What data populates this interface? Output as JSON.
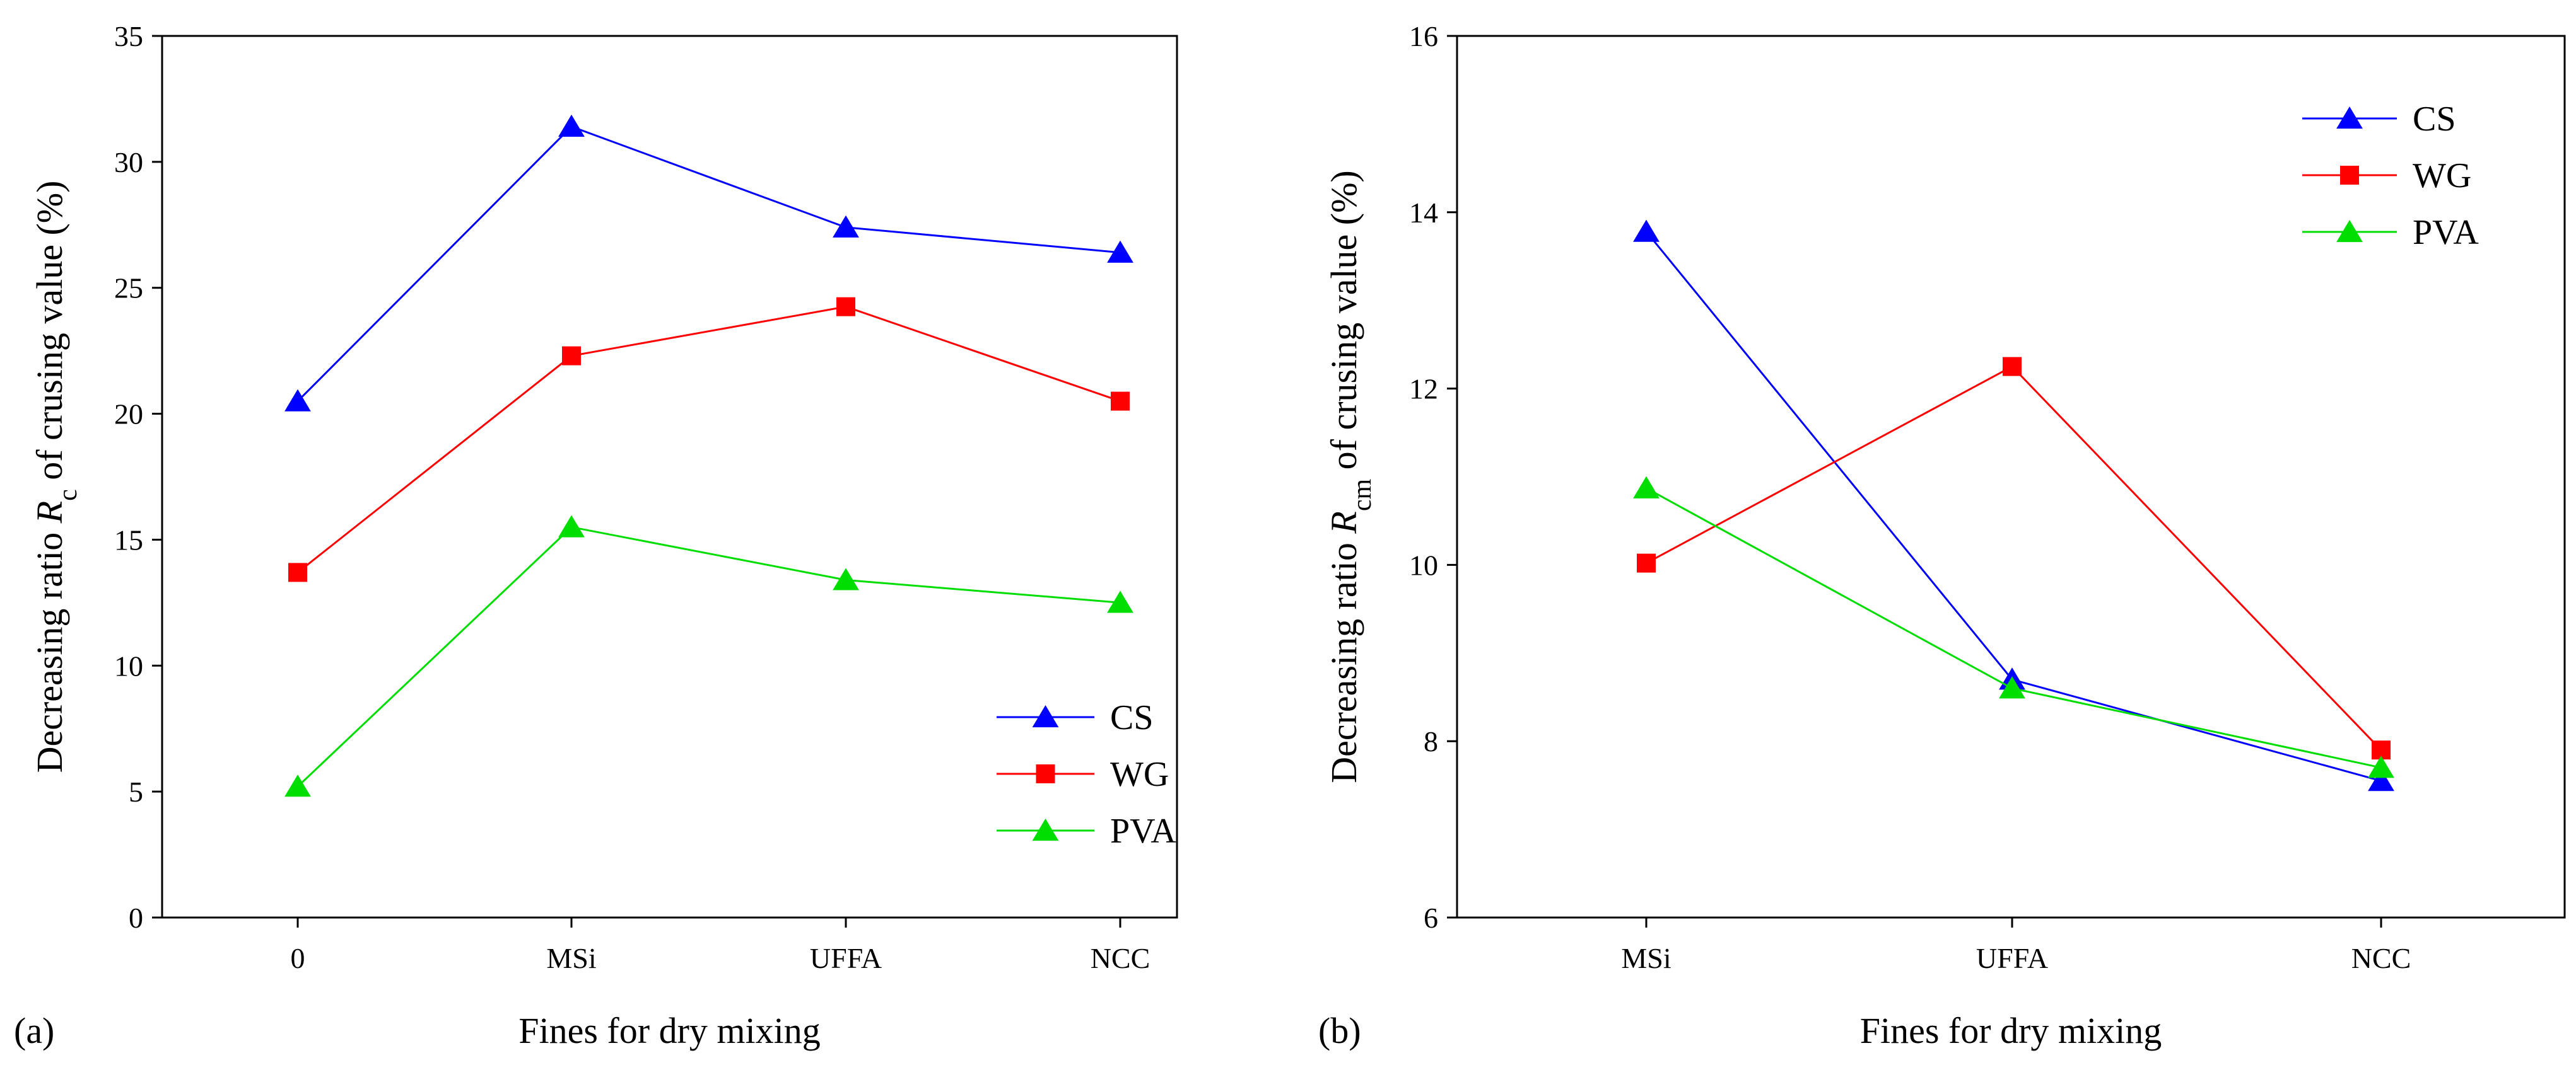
{
  "chart_data": [
    {
      "type": "line",
      "panel_label": "(a)",
      "title": "",
      "xlabel": "Fines for dry mixing",
      "ylabel_prefix": "Decreasing ratio ",
      "ylabel_var": "R",
      "ylabel_sub": "c",
      "ylabel_suffix": " of crusing value (%)",
      "categories": [
        "0",
        "MSi",
        "UFFA",
        "NCC"
      ],
      "ylim": [
        0,
        35
      ],
      "yticks": [
        "0",
        "5",
        "10",
        "15",
        "20",
        "25",
        "30",
        "35"
      ],
      "legend_position": "bottom-right",
      "series": [
        {
          "name": "CS",
          "color": "#0000ff",
          "marker": "triangle",
          "values": [
            20.5,
            31.4,
            27.4,
            26.4
          ]
        },
        {
          "name": "WG",
          "color": "#ff0000",
          "marker": "square",
          "values": [
            13.7,
            22.3,
            24.25,
            20.5
          ]
        },
        {
          "name": "PVA",
          "color": "#00dd00",
          "marker": "triangle",
          "values": [
            5.2,
            15.5,
            13.4,
            12.5
          ]
        }
      ]
    },
    {
      "type": "line",
      "panel_label": "(b)",
      "title": "",
      "xlabel": "Fines for dry mixing",
      "ylabel_prefix": "Decreasing ratio ",
      "ylabel_var": "R",
      "ylabel_sub": "cm",
      "ylabel_suffix": " of crusing value (%)",
      "categories": [
        "MSi",
        "UFFA",
        "NCC"
      ],
      "ylim": [
        6,
        16
      ],
      "yticks": [
        "6",
        "8",
        "10",
        "12",
        "14",
        "16"
      ],
      "legend_position": "top-right",
      "series": [
        {
          "name": "CS",
          "color": "#0000ff",
          "marker": "triangle",
          "values": [
            13.78,
            8.7,
            7.55
          ]
        },
        {
          "name": "WG",
          "color": "#ff0000",
          "marker": "square",
          "values": [
            10.02,
            12.25,
            7.9
          ]
        },
        {
          "name": "PVA",
          "color": "#00dd00",
          "marker": "triangle",
          "values": [
            10.87,
            8.6,
            7.7
          ]
        }
      ]
    }
  ]
}
